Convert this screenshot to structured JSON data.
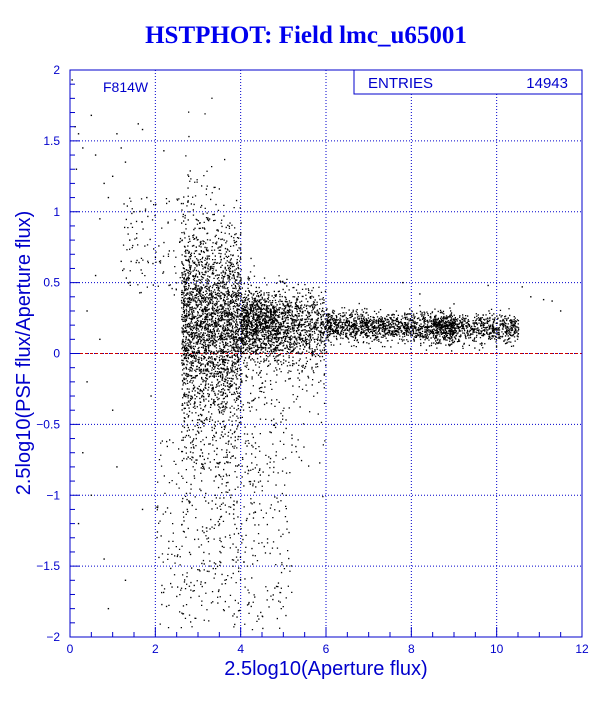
{
  "title": "HSTPHOT: Field lmc_u65001",
  "chart_data": {
    "type": "scatter",
    "filter_label": "F814W",
    "stats": {
      "label": "ENTRIES",
      "value": "14943"
    },
    "xlabel": "2.5log10(Aperture flux)",
    "ylabel": "2.5log10(PSF flux/Aperture flux)",
    "xlim": [
      0,
      12
    ],
    "ylim": [
      -2,
      2
    ],
    "xticks": [
      0,
      2,
      4,
      6,
      8,
      10,
      12
    ],
    "yticks": [
      -2,
      -1.5,
      -1,
      -0.5,
      0,
      0.5,
      1,
      1.5,
      2
    ],
    "xtick_labels": [
      "0",
      "2",
      "4",
      "6",
      "8",
      "10",
      "12"
    ],
    "ytick_labels": [
      "−2",
      "−1.5",
      "−1",
      "−0.5",
      "0",
      "0.5",
      "1",
      "1.5",
      "2"
    ],
    "grid": true,
    "reference_line": {
      "y": 0,
      "color": "#cc0000",
      "style": "dashed"
    },
    "colors": {
      "frame": "#0000cc",
      "grid": "#0000cc",
      "points": "#000000",
      "title": "#0000ee"
    },
    "series": [
      {
        "points": [
          [
            0.05,
            1.93
          ],
          [
            0.12,
            1.6
          ],
          [
            0.2,
            1.55
          ],
          [
            0.3,
            1.45
          ],
          [
            0.15,
            1.3
          ],
          [
            0.5,
            1.68
          ],
          [
            0.6,
            1.4
          ],
          [
            0.8,
            1.2
          ],
          [
            0.9,
            1.1
          ],
          [
            0.7,
            0.95
          ],
          [
            1.1,
            1.55
          ],
          [
            1.2,
            1.45
          ],
          [
            1.3,
            1.35
          ],
          [
            1.0,
            1.25
          ],
          [
            1.6,
            1.62
          ],
          [
            1.7,
            1.58
          ],
          [
            2.2,
            1.43
          ],
          [
            1.8,
            1.1
          ],
          [
            1.5,
            1.0
          ],
          [
            1.4,
            0.8
          ],
          [
            1.2,
            0.65
          ],
          [
            0.6,
            0.55
          ],
          [
            0.4,
            0.3
          ],
          [
            0.3,
            -0.7
          ],
          [
            0.8,
            -1.45
          ],
          [
            1.0,
            -0.4
          ],
          [
            0.5,
            -1.0
          ],
          [
            0.2,
            -1.2
          ],
          [
            0.9,
            -1.8
          ],
          [
            1.3,
            -1.6
          ],
          [
            1.1,
            -0.8
          ],
          [
            1.7,
            -1.1
          ],
          [
            1.9,
            -0.3
          ],
          [
            0.7,
            0.1
          ],
          [
            0.4,
            -0.2
          ],
          [
            9.8,
            0.48
          ],
          [
            10.6,
            0.47
          ],
          [
            10.8,
            0.4
          ],
          [
            11.1,
            0.38
          ],
          [
            11.3,
            0.37
          ],
          [
            11.5,
            0.3
          ],
          [
            7.8,
            0.5
          ],
          [
            8.2,
            0.42
          ],
          [
            9.0,
            0.35
          ]
        ]
      }
    ]
  }
}
